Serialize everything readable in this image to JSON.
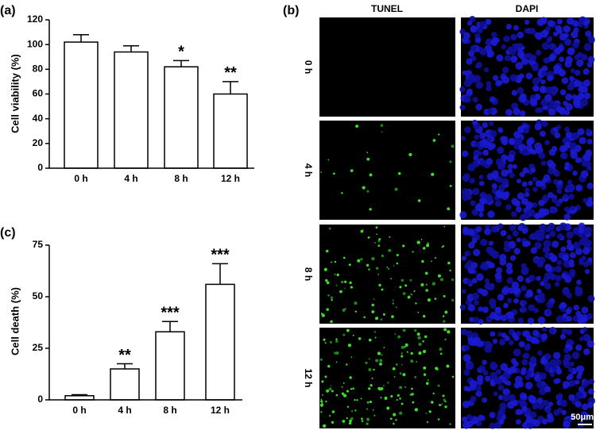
{
  "chart_data": [
    {
      "type": "bar",
      "panel_label": "(a)",
      "ylabel": "Cell viability (%)",
      "categories": [
        "0 h",
        "4 h",
        "8 h",
        "12 h"
      ],
      "values": [
        102,
        94,
        82,
        60
      ],
      "errors": [
        6,
        5,
        5,
        10
      ],
      "significance": [
        null,
        null,
        "*",
        "**"
      ],
      "color": "#ffffff",
      "ylim": [
        0,
        120
      ],
      "yticks": [
        0,
        20,
        40,
        60,
        80,
        100,
        120
      ],
      "grid": false
    },
    {
      "type": "bar",
      "panel_label": "(c)",
      "ylabel": "Cell death (%)",
      "categories": [
        "0 h",
        "4 h",
        "8 h",
        "12 h"
      ],
      "values": [
        2,
        15,
        33,
        56
      ],
      "errors": [
        0.5,
        2.5,
        5,
        10
      ],
      "significance": [
        null,
        "**",
        "***",
        "***"
      ],
      "color": "#ffffff",
      "ylim": [
        0,
        75
      ],
      "yticks": [
        0,
        25,
        50,
        75
      ],
      "grid": false
    }
  ],
  "image_panel": {
    "label": "(b)",
    "columns": [
      "TUNEL",
      "DAPI"
    ],
    "rows": [
      "0 h",
      "4 h",
      "8 h",
      "12 h"
    ],
    "scale_bar": "50μm"
  }
}
